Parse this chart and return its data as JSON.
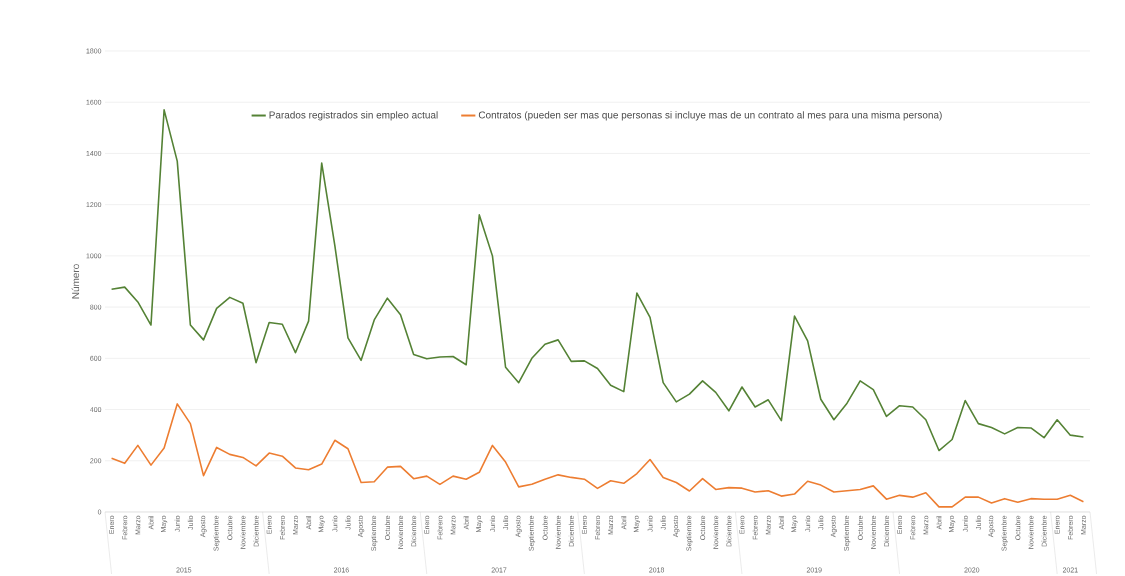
{
  "chart_data": {
    "type": "line",
    "ylabel": "Número",
    "categories": [
      "Enero",
      "Febrero",
      "Marzo",
      "Abril",
      "Mayo",
      "Junio",
      "Julio",
      "Agosto",
      "Septiembre",
      "Octubre",
      "Noviembre",
      "Diciembre",
      "Enero",
      "Febrero",
      "Marzo",
      "Abril",
      "Mayo",
      "Junio",
      "Julio",
      "Agosto",
      "Septiembre",
      "Octubre",
      "Noviembre",
      "Diciembre",
      "Enero",
      "Febrero",
      "Marzo",
      "Abril",
      "Mayo",
      "Junio",
      "Julio",
      "Agosto",
      "Septiembre",
      "Octubre",
      "Noviembre",
      "Diciembre",
      "Enero",
      "Febrero",
      "Marzo",
      "Abril",
      "Mayo",
      "Junio",
      "Julio",
      "Agosto",
      "Septiembre",
      "Octubre",
      "Noviembre",
      "Diciembre",
      "Enero",
      "Febrero",
      "Marzo",
      "Abril",
      "Mayo",
      "Junio",
      "Julio",
      "Agosto",
      "Septiembre",
      "Octubre",
      "Noviembre",
      "Diciembre",
      "Enero",
      "Febrero",
      "Marzo",
      "Abril",
      "Mayo",
      "Junio",
      "Julio",
      "Agosto",
      "Septiembre",
      "Octubre",
      "Noviembre",
      "Diciembre",
      "Enero",
      "Febrero",
      "Marzo"
    ],
    "annotations": [
      "2015",
      "2016",
      "2017",
      "2018",
      "2019",
      "2020",
      "2021"
    ],
    "series": [
      {
        "name": "Parados registrados sin empleo actual",
        "color": "#548235",
        "values": [
          870,
          878,
          820,
          730,
          1570,
          1370,
          730,
          672,
          795,
          838,
          815,
          583,
          740,
          733,
          622,
          745,
          1362,
          1040,
          680,
          592,
          750,
          835,
          770,
          615,
          598,
          605,
          607,
          575,
          1160,
          1000,
          565,
          505,
          600,
          655,
          672,
          588,
          590,
          560,
          495,
          470,
          855,
          760,
          505,
          430,
          460,
          512,
          467,
          395,
          488,
          410,
          438,
          357,
          765,
          668,
          440,
          360,
          425,
          512,
          478,
          373,
          415,
          410,
          360,
          240,
          283,
          435,
          345,
          330,
          305,
          330,
          328,
          290,
          360,
          300,
          293
        ]
      },
      {
        "name": "Contratos (pueden ser mas que personas si incluye mas de un contrato al mes para una misma persona)",
        "color": "#ed7d31",
        "values": [
          210,
          190,
          260,
          183,
          250,
          422,
          345,
          142,
          252,
          225,
          213,
          180,
          230,
          218,
          172,
          165,
          187,
          280,
          247,
          115,
          118,
          175,
          178,
          130,
          140,
          108,
          140,
          128,
          155,
          260,
          195,
          98,
          108,
          128,
          145,
          135,
          128,
          92,
          122,
          112,
          150,
          205,
          135,
          115,
          82,
          130,
          88,
          95,
          93,
          78,
          83,
          62,
          70,
          120,
          105,
          78,
          83,
          88,
          102,
          50,
          65,
          58,
          75,
          20,
          20,
          58,
          58,
          35,
          52,
          38,
          52,
          50,
          50,
          65,
          40
        ]
      }
    ],
    "ylim": [
      0,
      1800
    ],
    "yticks": [
      0,
      200,
      400,
      600,
      800,
      1000,
      1200,
      1400,
      1600,
      1800
    ],
    "grid": "y",
    "legend": "top",
    "marker": "none",
    "line_style": "solid"
  }
}
